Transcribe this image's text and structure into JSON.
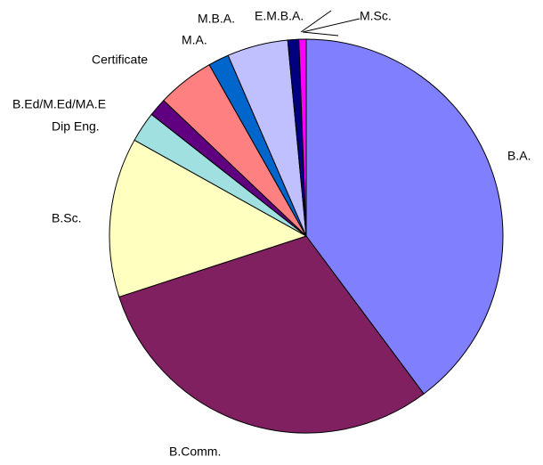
{
  "chart_data": {
    "type": "pie",
    "categories": [
      "B.A.",
      "B.Comm.",
      "B.Sc.",
      "Dip Eng.",
      "B.Ed/M.Ed/MA.E",
      "Certificate",
      "M.A.",
      "M.B.A.",
      "E.M.B.A.",
      "M.Sc."
    ],
    "values": [
      39.8,
      30.2,
      13.1,
      2.5,
      1.5,
      4.7,
      1.7,
      5.0,
      0.9,
      0.6
    ],
    "colors": [
      "#8080ff",
      "#802060",
      "#ffffc0",
      "#a0e0e0",
      "#600080",
      "#ff8080",
      "#0066cc",
      "#c0c0ff",
      "#000080",
      "#ff00ff"
    ]
  }
}
